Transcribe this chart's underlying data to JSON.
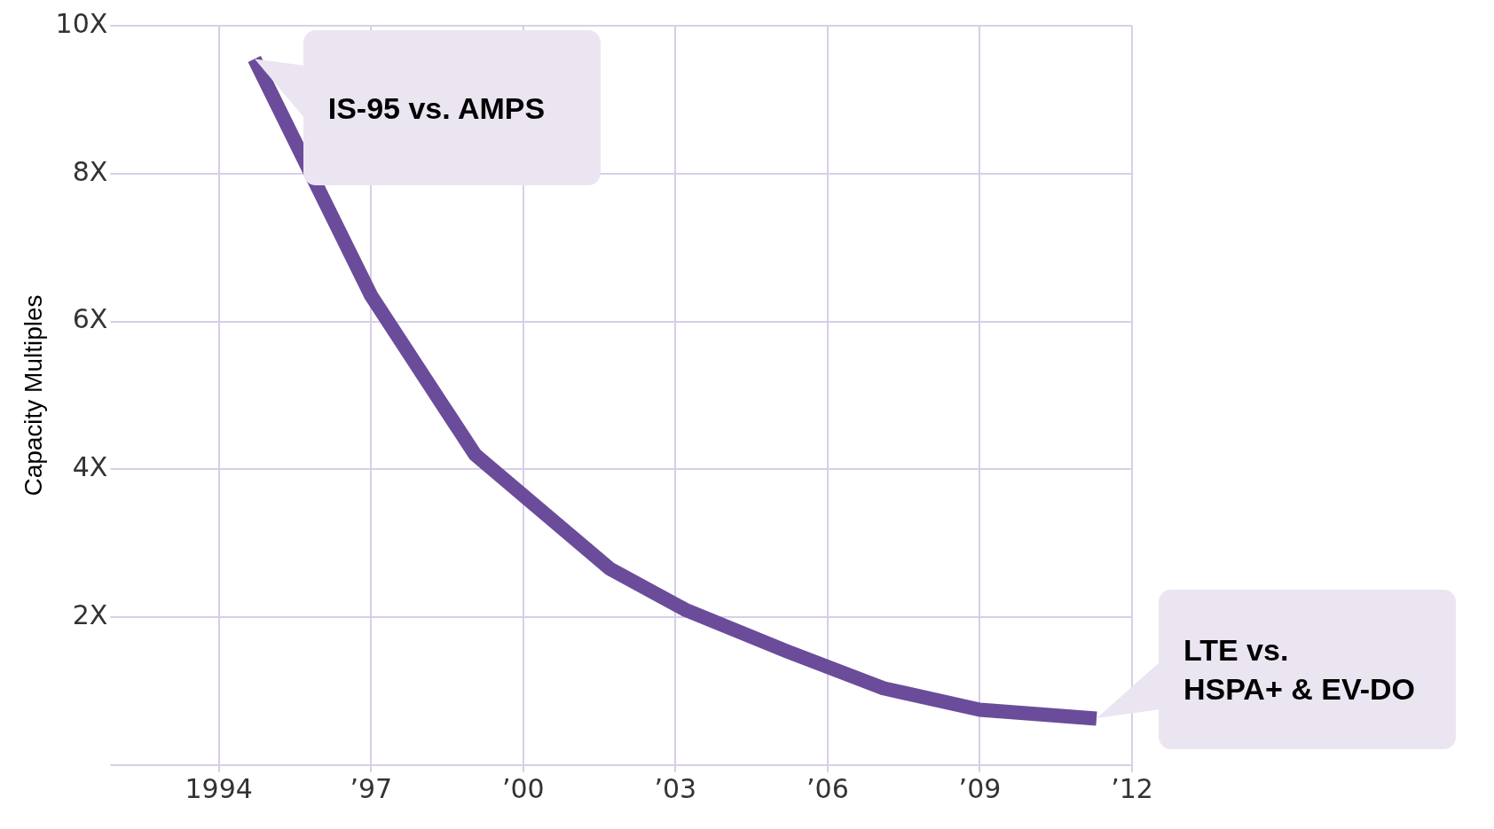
{
  "chart_data": {
    "type": "line",
    "ylabel": "Capacity Multiples",
    "x": [
      1994.7,
      1997,
      1999.05,
      2001.7,
      2003.2,
      2005.2,
      2007.1,
      2009,
      2011.3
    ],
    "series": [
      {
        "color": "#6b4c9a",
        "values": [
          9.55,
          6.35,
          4.2,
          2.66,
          2.1,
          1.54,
          1.04,
          0.75,
          0.63
        ]
      }
    ],
    "xlim": [
      1992,
      2012
    ],
    "ylim": [
      0,
      10
    ],
    "xticks": [
      {
        "value": 1994,
        "label": "1994"
      },
      {
        "value": 1997,
        "label": "’97"
      },
      {
        "value": 2000,
        "label": "’00"
      },
      {
        "value": 2003,
        "label": "’03"
      },
      {
        "value": 2006,
        "label": "’06"
      },
      {
        "value": 2009,
        "label": "’09"
      },
      {
        "value": 2012,
        "label": "’12"
      }
    ],
    "yticks": [
      {
        "value": 0,
        "label": null
      },
      {
        "value": 2,
        "label": "2X"
      },
      {
        "value": 4,
        "label": "4X"
      },
      {
        "value": 6,
        "label": "6X"
      },
      {
        "value": 8,
        "label": "8X"
      },
      {
        "value": 10,
        "label": "10X"
      }
    ],
    "grid": true,
    "marker": "none",
    "line_style": "solid",
    "annotations": [
      {
        "text": "IS-95 vs. AMPS",
        "x": 1994.7,
        "y": 9.55
      },
      {
        "text": "LTE vs.\nHSPA+ & EV-DO",
        "x": 2011.3,
        "y": 0.63
      }
    ]
  }
}
